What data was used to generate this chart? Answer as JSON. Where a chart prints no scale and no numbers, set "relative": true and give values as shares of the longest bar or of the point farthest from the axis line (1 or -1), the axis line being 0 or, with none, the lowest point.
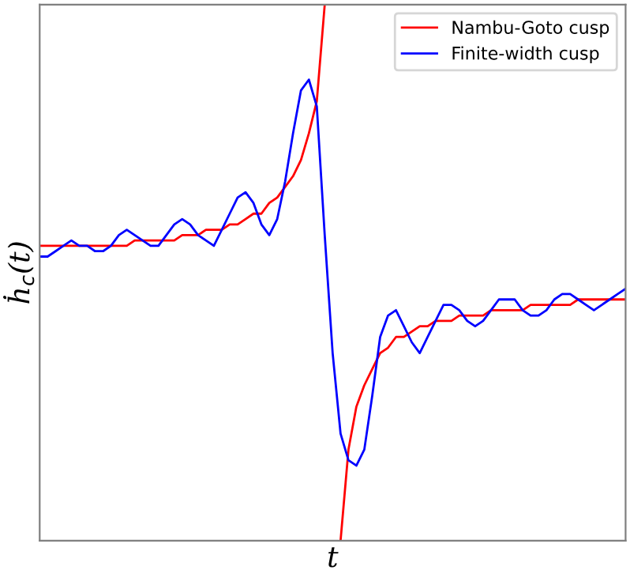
{
  "chart_data": {
    "type": "line",
    "relative": true,
    "xlabel": "t",
    "ylabel": "ḣ$_{c}$(t)",
    "legend": "top right",
    "marker": "none",
    "line_style": "solid",
    "categories": [
      null,
      null,
      null,
      null,
      null,
      null,
      null,
      null,
      null,
      null,
      null,
      null,
      null,
      null,
      null,
      null,
      null,
      null,
      null,
      null,
      null,
      null,
      null,
      null,
      null,
      null,
      null,
      null,
      null,
      null,
      null,
      null,
      null,
      null,
      null,
      null,
      null,
      null,
      null,
      null,
      null,
      null,
      null,
      null,
      null,
      null,
      null,
      null,
      null,
      null,
      null,
      null,
      null,
      null,
      null,
      null,
      null,
      null,
      null,
      null,
      null,
      null,
      null,
      null,
      null,
      null,
      null,
      null,
      null,
      null,
      null,
      null,
      null,
      null,
      null
    ],
    "series": [
      {
        "name": "Nambu-Goto cusp",
        "color": "#ff0000",
        "values": [
          0.55,
          0.55,
          0.55,
          0.55,
          0.55,
          0.55,
          0.55,
          0.55,
          0.55,
          0.55,
          0.55,
          0.55,
          0.56,
          0.56,
          0.56,
          0.56,
          0.56,
          0.56,
          0.57,
          0.57,
          0.57,
          0.58,
          0.58,
          0.58,
          0.59,
          0.59,
          0.6,
          0.61,
          0.61,
          0.63,
          0.64,
          0.66,
          0.68,
          0.71,
          0.76,
          0.82,
          1,
          null,
          0,
          0.17,
          0.25,
          0.29,
          0.32,
          0.35,
          0.36,
          0.38,
          0.38,
          0.39,
          0.4,
          0.4,
          0.41,
          0.41,
          0.41,
          0.42,
          0.42,
          0.42,
          0.42,
          0.43,
          0.43,
          0.43,
          0.43,
          0.43,
          0.44,
          0.44,
          0.44,
          0.44,
          0.44,
          0.44,
          0.45,
          0.45,
          0.45,
          0.45,
          0.45,
          0.45,
          0.45
        ]
      },
      {
        "name": "Finite-width cusp",
        "color": "#0000ff",
        "values": [
          0.53,
          0.53,
          0.54,
          0.55,
          0.56,
          0.55,
          0.55,
          0.54,
          0.54,
          0.55,
          0.57,
          0.58,
          0.57,
          0.56,
          0.55,
          0.55,
          0.57,
          0.59,
          0.6,
          0.59,
          0.57,
          0.56,
          0.55,
          0.58,
          0.61,
          0.64,
          0.65,
          0.63,
          0.59,
          0.57,
          0.6,
          0.67,
          0.76,
          0.84,
          0.86,
          0.81,
          0.57,
          0.35,
          0.2,
          0.15,
          0.14,
          0.17,
          0.27,
          0.38,
          0.42,
          0.43,
          0.4,
          0.37,
          0.35,
          0.38,
          0.41,
          0.44,
          0.44,
          0.43,
          0.41,
          0.4,
          0.41,
          0.43,
          0.45,
          0.45,
          0.45,
          0.43,
          0.42,
          0.42,
          0.43,
          0.45,
          0.46,
          0.46,
          0.45,
          0.44,
          0.43,
          0.44,
          0.45,
          0.46,
          0.47
        ]
      }
    ]
  }
}
